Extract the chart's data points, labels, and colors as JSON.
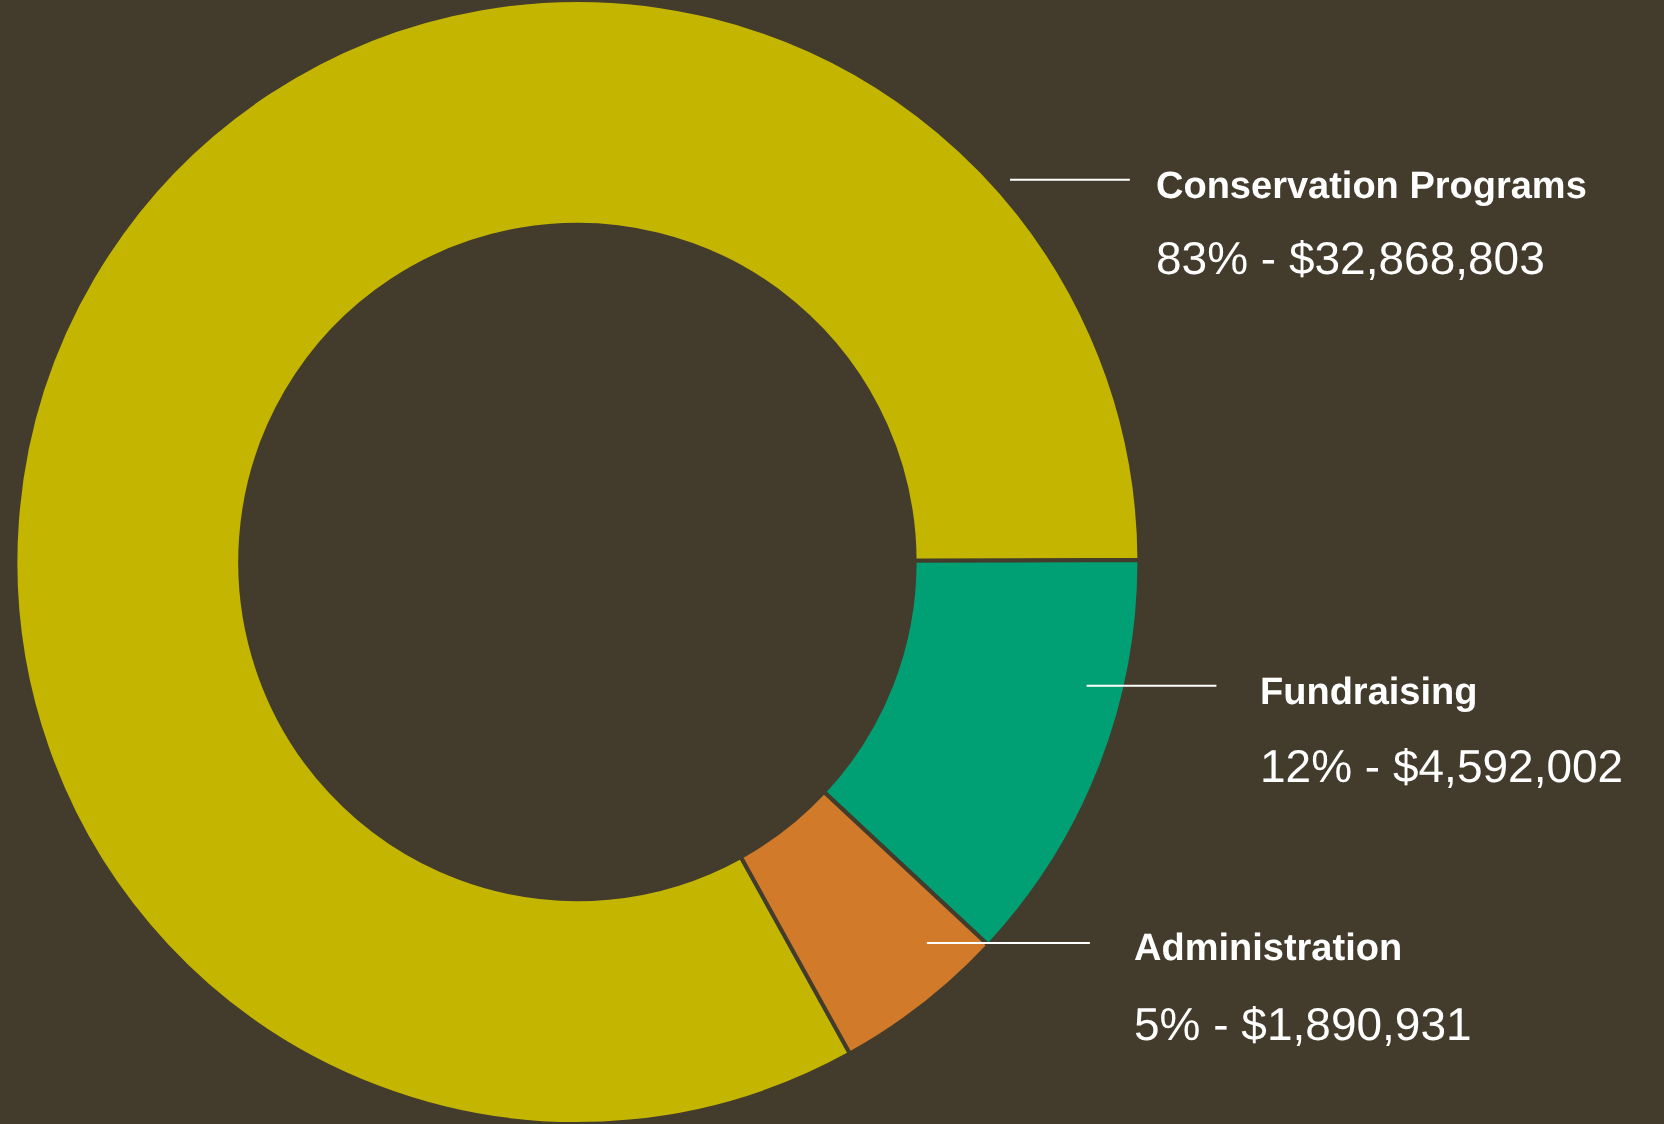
{
  "chart_data": {
    "type": "donut",
    "categories": [
      "Conservation Programs",
      "Fundraising",
      "Administration"
    ],
    "values": [
      83,
      12,
      5
    ],
    "value_labels": [
      "83% - $32,868,803",
      "12% - $4,592,002",
      "5% - $1,890,931"
    ],
    "colors": [
      "#c4b500",
      "#00a074",
      "#d07a2a"
    ]
  }
}
